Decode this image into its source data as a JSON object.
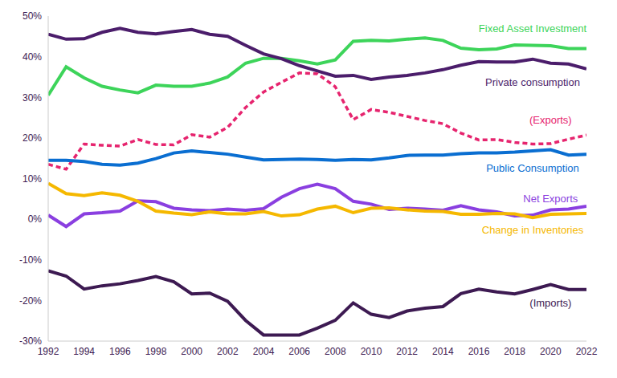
{
  "chart_data": {
    "type": "line",
    "x": [
      1992,
      1993,
      1994,
      1995,
      1996,
      1997,
      1998,
      1999,
      2000,
      2001,
      2002,
      2003,
      2004,
      2005,
      2006,
      2007,
      2008,
      2009,
      2010,
      2011,
      2012,
      2013,
      2014,
      2015,
      2016,
      2017,
      2018,
      2019,
      2020,
      2021,
      2022
    ],
    "xlim": [
      1992,
      2022
    ],
    "xticks": [
      1992,
      1994,
      1996,
      1998,
      2000,
      2002,
      2004,
      2006,
      2008,
      2010,
      2012,
      2014,
      2016,
      2018,
      2020,
      2022
    ],
    "ylim": [
      -30,
      50
    ],
    "yticks": [
      {
        "value": -30,
        "label": "-30%"
      },
      {
        "value": -20,
        "label": "-20%"
      },
      {
        "value": -10,
        "label": "-10%"
      },
      {
        "value": 0,
        "label": "0%"
      },
      {
        "value": 10,
        "label": "10%"
      },
      {
        "value": 20,
        "label": "20%"
      },
      {
        "value": 30,
        "label": "30%"
      },
      {
        "value": 40,
        "label": "40%"
      },
      {
        "value": 50,
        "label": "50%"
      }
    ],
    "grid": false,
    "series": [
      {
        "name": "Fixed Asset Investment",
        "color": "#3dd45a",
        "line_style": "solid",
        "values": [
          30.5,
          37.5,
          34.8,
          32.7,
          31.8,
          31.1,
          33,
          32.7,
          32.7,
          33.5,
          35,
          38.4,
          39.6,
          39.6,
          39,
          38.2,
          39.2,
          43.8,
          44,
          43.9,
          44.3,
          44.6,
          44,
          42.1,
          41.7,
          41.9,
          42.9,
          42.8,
          42.7,
          42,
          42
        ]
      },
      {
        "name": "Private consumption",
        "color": "#4b1d6b",
        "line_style": "solid",
        "values": [
          45.5,
          44.3,
          44.4,
          46,
          47,
          46,
          45.6,
          46.2,
          46.7,
          45.5,
          45,
          42.8,
          40.7,
          39.5,
          37.8,
          36.5,
          35.2,
          35.4,
          34.4,
          35,
          35.4,
          36,
          36.8,
          37.9,
          38.8,
          38.7,
          38.7,
          39.4,
          38.4,
          38.2,
          37
        ]
      },
      {
        "name": "(Exports)",
        "color": "#e6246e",
        "line_style": "dashed",
        "values": [
          13.5,
          12.3,
          18.5,
          18.2,
          18,
          19.6,
          18.4,
          18.3,
          20.8,
          20.2,
          22.6,
          27.5,
          31.3,
          33.7,
          36,
          35.8,
          32.6,
          24.5,
          27,
          26.3,
          25.3,
          24.3,
          23.5,
          21.2,
          19.5,
          19.6,
          18.9,
          18.5,
          18.6,
          19.7,
          20.7
        ]
      },
      {
        "name": "Public Consumption",
        "color": "#0a6ed1",
        "line_style": "solid",
        "values": [
          14.5,
          14.5,
          14.2,
          13.5,
          13.3,
          13.8,
          14.9,
          16.3,
          16.8,
          16.4,
          16,
          15.3,
          14.6,
          14.7,
          14.8,
          14.7,
          14.5,
          14.7,
          14.6,
          15.1,
          15.7,
          15.8,
          15.8,
          16.1,
          16.3,
          16.3,
          16.5,
          16.8,
          17.1,
          15.8,
          16
        ]
      },
      {
        "name": "Net Exports",
        "color": "#8a3fe0",
        "line_style": "solid",
        "values": [
          1,
          -1.8,
          1.3,
          1.6,
          2,
          4.5,
          4.3,
          2.7,
          2.3,
          2.1,
          2.5,
          2.2,
          2.6,
          5.4,
          7.5,
          8.6,
          7.5,
          4.4,
          3.7,
          2.4,
          2.7,
          2.5,
          2.2,
          3.3,
          2.3,
          1.8,
          0.8,
          1,
          2.3,
          2.5,
          3.2
        ]
      },
      {
        "name": "Change in Inventories",
        "color": "#f5b800",
        "line_style": "solid",
        "values": [
          8.8,
          6.3,
          5.8,
          6.5,
          5.9,
          4.4,
          2,
          1.5,
          1.1,
          1.8,
          1.3,
          1.3,
          1.9,
          0.8,
          1.1,
          2.5,
          3.2,
          1.6,
          2.7,
          2.8,
          2.3,
          2,
          1.9,
          1.2,
          1.2,
          1.4,
          1.3,
          0.4,
          1.2,
          1.3,
          1.4
        ]
      },
      {
        "name": "(Imports)",
        "color": "#3d1a52",
        "line_style": "solid",
        "values": [
          -12.7,
          -14,
          -17.2,
          -16.4,
          -15.9,
          -15.1,
          -14.1,
          -15.4,
          -18.4,
          -18.2,
          -20.2,
          -24.9,
          -28.5,
          -28.5,
          -28.5,
          -26.8,
          -24.9,
          -20.6,
          -23.4,
          -24.2,
          -22.6,
          -21.9,
          -21.5,
          -18.3,
          -17.2,
          -17.9,
          -18.4,
          -17.3,
          -16.1,
          -17.3,
          -17.3
        ]
      }
    ]
  }
}
